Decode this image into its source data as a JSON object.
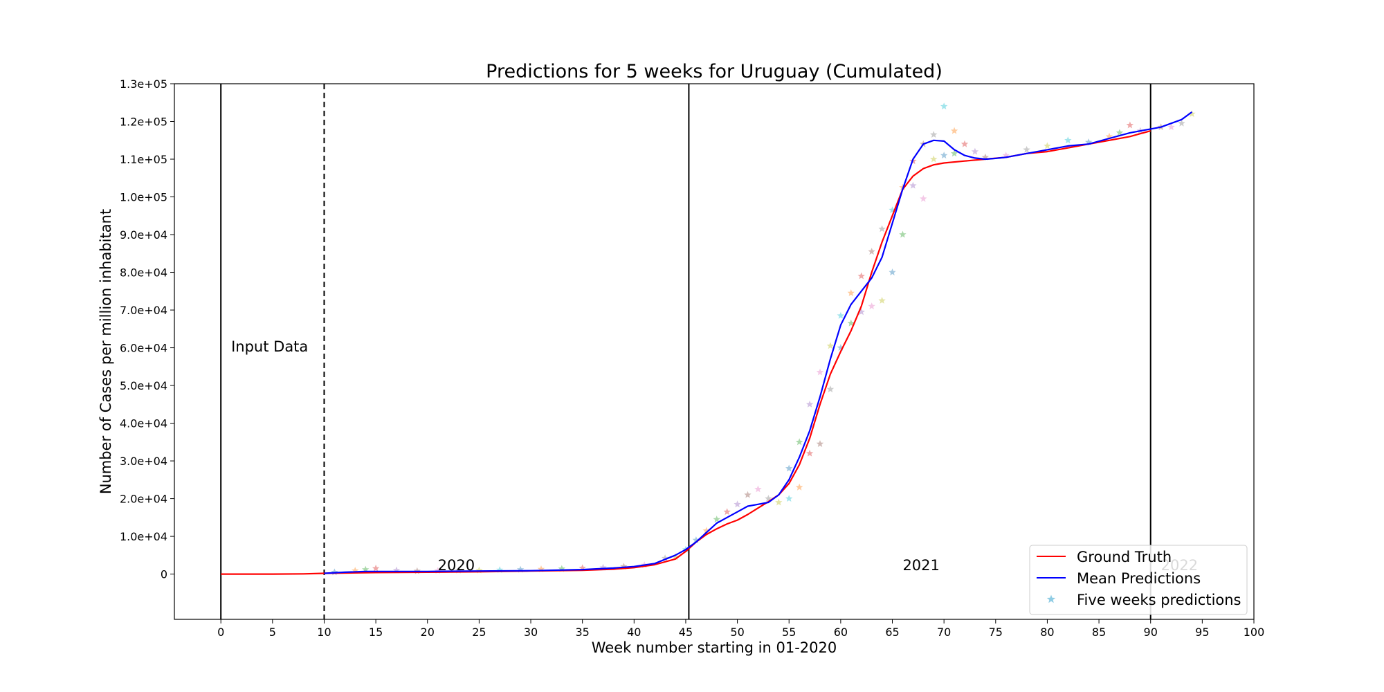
{
  "chart_data": {
    "type": "line",
    "title": "Predictions for 5 weeks for Uruguay (Cumulated)",
    "xlabel": "Week number starting in 01-2020",
    "ylabel": "Number of Cases per million inhabitant",
    "xlim": [
      -4.5,
      100
    ],
    "ylim": [
      -12000,
      130000
    ],
    "x_ticks": [
      0,
      5,
      10,
      15,
      20,
      25,
      30,
      35,
      40,
      45,
      50,
      55,
      60,
      65,
      70,
      75,
      80,
      85,
      90,
      95,
      100
    ],
    "x_tick_labels": [
      "0",
      "5",
      "10",
      "15",
      "20",
      "25",
      "30",
      "35",
      "40",
      "45",
      "50",
      "55",
      "60",
      "65",
      "70",
      "75",
      "80",
      "85",
      "90",
      "95",
      "100"
    ],
    "y_ticks": [
      0,
      10000,
      20000,
      30000,
      40000,
      50000,
      60000,
      70000,
      80000,
      90000,
      100000,
      110000,
      120000,
      130000
    ],
    "y_tick_labels": [
      "0",
      "1.0e+04",
      "2.0e+04",
      "3.0e+04",
      "4.0e+04",
      "5.0e+04",
      "6.0e+04",
      "7.0e+04",
      "8.0e+04",
      "9.0e+04",
      "1.0e+05",
      "1.1e+05",
      "1.2e+05",
      "1.3e+05"
    ],
    "grid": false,
    "legend_position": "bottom-right",
    "vertical_lines": [
      {
        "x": 0,
        "style": "solid"
      },
      {
        "x": 10,
        "style": "dashed"
      },
      {
        "x": 45.3,
        "style": "solid"
      },
      {
        "x": 90,
        "style": "solid"
      }
    ],
    "annotations": [
      {
        "text": "Input Data",
        "x": 1,
        "y": 59000
      },
      {
        "text": "2020",
        "x": 21,
        "y": 1000
      },
      {
        "text": "2021",
        "x": 66,
        "y": 1000
      },
      {
        "text": "2022",
        "x": 91,
        "y": 1000
      }
    ],
    "series": [
      {
        "name": "Ground Truth",
        "color": "#ff0000",
        "x": [
          0,
          5,
          8,
          10,
          15,
          20,
          25,
          30,
          35,
          38,
          40,
          42,
          44,
          45,
          46,
          47,
          48,
          49,
          50,
          51,
          52,
          53,
          54,
          55,
          56,
          57,
          58,
          59,
          60,
          61,
          62,
          63,
          64,
          65,
          66,
          67,
          68,
          69,
          70,
          72,
          74,
          76,
          78,
          80,
          82,
          84,
          86,
          88,
          90
        ],
        "y": [
          0,
          0,
          50,
          200,
          400,
          500,
          600,
          800,
          1000,
          1300,
          1700,
          2500,
          4000,
          6000,
          8500,
          10500,
          12000,
          13300,
          14300,
          15800,
          17500,
          19200,
          21000,
          24000,
          29000,
          36000,
          45000,
          53000,
          59000,
          64500,
          71000,
          80000,
          88000,
          95000,
          102000,
          105500,
          107500,
          108500,
          109000,
          109500,
          110000,
          110500,
          111500,
          112000,
          113000,
          114000,
          115000,
          116000,
          117500
        ]
      },
      {
        "name": "Mean Predictions",
        "color": "#0000ff",
        "x": [
          10,
          12,
          14,
          16,
          20,
          25,
          30,
          35,
          38,
          40,
          42,
          44,
          45,
          46,
          47,
          48,
          49,
          50,
          51,
          52,
          53,
          54,
          55,
          56,
          57,
          58,
          59,
          60,
          61,
          62,
          63,
          64,
          65,
          66,
          67,
          68,
          69,
          70,
          71,
          72,
          73,
          74,
          75,
          76,
          78,
          80,
          82,
          84,
          86,
          88,
          90,
          91,
          92,
          93,
          94
        ],
        "y": [
          200,
          500,
          700,
          700,
          700,
          800,
          900,
          1200,
          1600,
          2000,
          2800,
          5000,
          6500,
          8500,
          11000,
          13500,
          15000,
          16500,
          18000,
          18500,
          19000,
          21000,
          25000,
          31000,
          38000,
          47000,
          57000,
          66000,
          71500,
          75000,
          78500,
          84000,
          93000,
          102000,
          110000,
          114000,
          115000,
          114800,
          112500,
          111000,
          110300,
          110000,
          110200,
          110500,
          111500,
          112500,
          113500,
          114000,
          115500,
          117000,
          118000,
          118500,
          119500,
          120500,
          122500
        ]
      },
      {
        "name": "Five weeks predictions",
        "marker": "star",
        "x": [
          11,
          13,
          14,
          15,
          17,
          19,
          21,
          23,
          25,
          27,
          29,
          31,
          33,
          35,
          37,
          39,
          41,
          43,
          44,
          45,
          46,
          47,
          48,
          49,
          50,
          51,
          52,
          53,
          54,
          55,
          55,
          56,
          56,
          57,
          57,
          58,
          58,
          59,
          59,
          60,
          60,
          61,
          61,
          62,
          62,
          63,
          63,
          64,
          64,
          65,
          65,
          66,
          66,
          67,
          67,
          68,
          68,
          69,
          69,
          70,
          70,
          71,
          71,
          72,
          73,
          74,
          76,
          78,
          80,
          82,
          84,
          86,
          87,
          88,
          89,
          91,
          92,
          93,
          94
        ],
        "y": [
          500,
          900,
          1200,
          1500,
          1000,
          800,
          900,
          1000,
          1000,
          1100,
          1200,
          1300,
          1400,
          1600,
          1700,
          2000,
          2400,
          4200,
          4500,
          6500,
          9000,
          11500,
          14500,
          16500,
          18500,
          21000,
          22500,
          20000,
          19000,
          20000,
          28000,
          23000,
          35000,
          32000,
          45000,
          34500,
          53500,
          49000,
          60500,
          68500,
          60000,
          74500,
          66500,
          79000,
          69500,
          85500,
          71000,
          91500,
          72500,
          96500,
          80000,
          102500,
          90000,
          109500,
          103000,
          114000,
          99500,
          116500,
          110000,
          124000,
          111000,
          117500,
          111500,
          114000,
          112000,
          110500,
          111000,
          112500,
          113500,
          115000,
          114500,
          116000,
          117000,
          119000,
          117500,
          118500,
          118500,
          119500,
          122000
        ]
      }
    ]
  }
}
